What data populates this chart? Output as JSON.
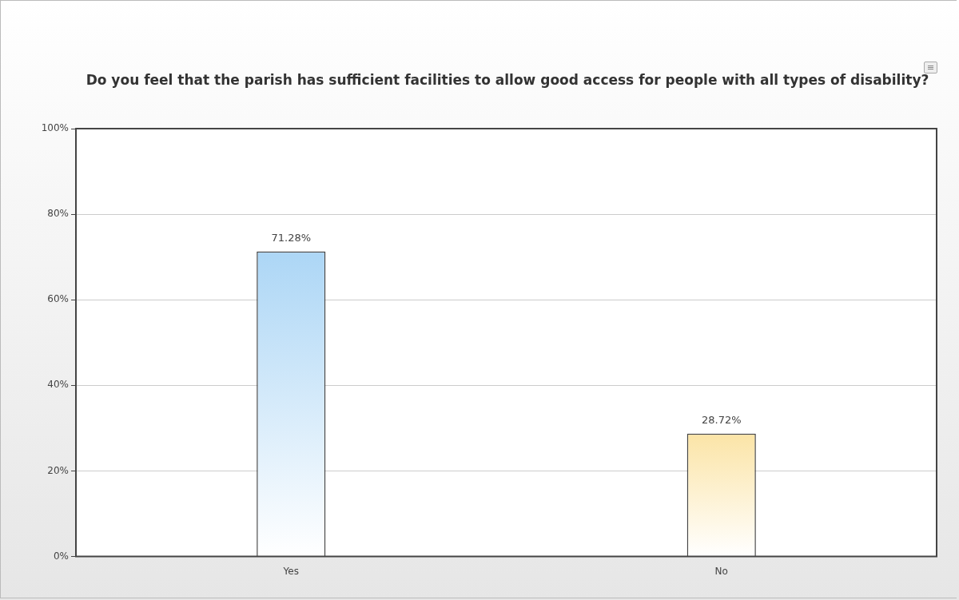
{
  "chart_data": {
    "type": "bar",
    "title": "Do you feel that the parish has sufficient facilities to allow good access for people with all types of disability?",
    "categories": [
      "Yes",
      "No"
    ],
    "values": [
      71.28,
      28.72
    ],
    "colors": [
      "#a8d4f5",
      "#f5b918"
    ],
    "value_labels": [
      "71.28%",
      "28.72%"
    ],
    "ylim": [
      0,
      100
    ],
    "yticks": [
      {
        "value": 0,
        "label": "0%"
      },
      {
        "value": 20,
        "label": "20%"
      },
      {
        "value": 40,
        "label": "40%"
      },
      {
        "value": 60,
        "label": "60%"
      },
      {
        "value": 80,
        "label": "80%"
      },
      {
        "value": 100,
        "label": "100%"
      }
    ],
    "grid": "y",
    "legend": false
  }
}
